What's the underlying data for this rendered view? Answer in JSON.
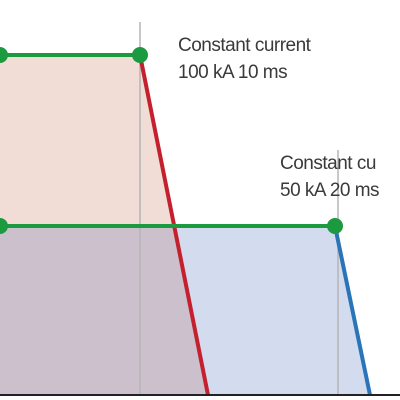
{
  "labels": [
    {
      "line1": "Constant current",
      "line2": "100 kA 10 ms"
    },
    {
      "line1": "Constant cu",
      "line2": "50 kA 20 ms"
    }
  ]
}
